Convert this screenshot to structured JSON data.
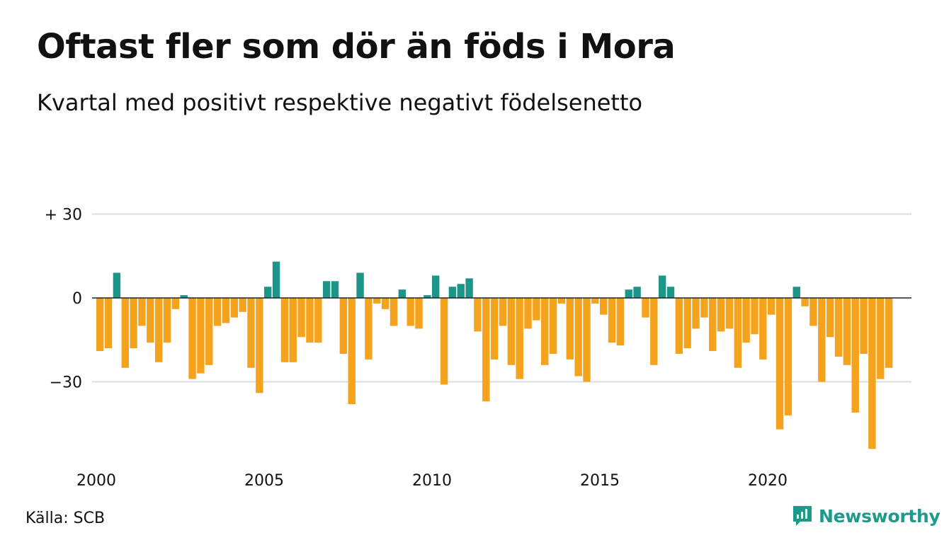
{
  "header": {
    "title": "Oftast fler som dör än föds i Mora",
    "subtitle": "Kvartal med positivt respektive negativt födelsenetto"
  },
  "footer": {
    "source": "Källa: SCB",
    "brand": "Newsworthy"
  },
  "colors": {
    "positive": "#1b9688",
    "negative": "#f5a21d",
    "grid": "#dddddd",
    "zero_line": "#222222",
    "brand": "#1e9a8a"
  },
  "chart_data": {
    "type": "bar",
    "title": "Oftast fler som dör än föds i Mora",
    "subtitle": "Kvartal med positivt respektive negativt födelsenetto",
    "xlabel": "",
    "ylabel": "",
    "ylim": [
      -55,
      30
    ],
    "yticks": [
      30,
      0,
      -30
    ],
    "ytick_labels": [
      "+ 30",
      "0",
      "−30"
    ],
    "xticks": [
      2000,
      2005,
      2010,
      2015,
      2020
    ],
    "xtick_labels": [
      "2000",
      "2005",
      "2010",
      "2015",
      "2020"
    ],
    "grid": true,
    "start_year": 2000,
    "start_quarter": 1,
    "values": [
      -19,
      -18,
      9,
      -25,
      -18,
      -10,
      -16,
      -23,
      -16,
      -4,
      1,
      -29,
      -27,
      -24,
      -10,
      -9,
      -7,
      -5,
      -25,
      -34,
      4,
      13,
      -23,
      -23,
      -14,
      -16,
      -16,
      6,
      6,
      -20,
      -38,
      9,
      -22,
      -2,
      -4,
      -10,
      3,
      -10,
      -11,
      1,
      8,
      -31,
      4,
      5,
      7,
      -12,
      -37,
      -22,
      -10,
      -24,
      -29,
      -11,
      -8,
      -24,
      -20,
      -2,
      -22,
      -28,
      -30,
      -2,
      -6,
      -16,
      -17,
      3,
      4,
      -7,
      -24,
      8,
      4,
      -20,
      -18,
      -11,
      -7,
      -19,
      -12,
      -11,
      -25,
      -16,
      -13,
      -22,
      -6,
      -47,
      -42,
      4,
      -3,
      -10,
      -30,
      -14,
      -21,
      -24,
      -41,
      -20,
      -54,
      -29,
      -25
    ]
  }
}
